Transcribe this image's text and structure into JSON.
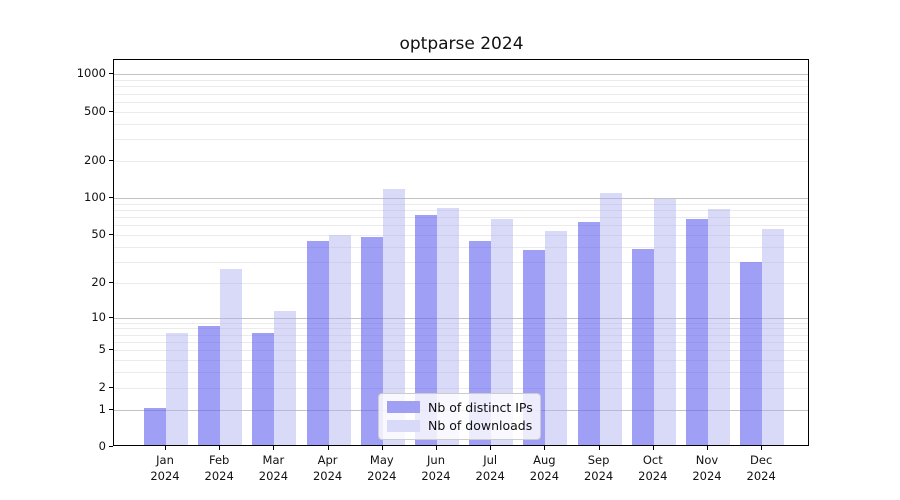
{
  "title": "optparse 2024",
  "chart_data": {
    "type": "bar",
    "title": "optparse 2024",
    "categories": [
      "Jan",
      "Feb",
      "Mar",
      "Apr",
      "May",
      "Jun",
      "Jul",
      "Aug",
      "Sep",
      "Oct",
      "Nov",
      "Dec"
    ],
    "category_sublabel": "2024",
    "series": [
      {
        "name": "Nb of distinct IPs",
        "color": "#9f9ff4",
        "values": [
          1,
          8,
          7,
          43,
          46,
          70,
          43,
          36,
          62,
          37,
          65,
          29
        ]
      },
      {
        "name": "Nb of downloads",
        "color": "#d9d9f8",
        "values": [
          7,
          25,
          11,
          48,
          115,
          80,
          65,
          52,
          105,
          95,
          78,
          54
        ]
      }
    ],
    "yscale": "log1p",
    "yticks": [
      0,
      1,
      2,
      5,
      10,
      20,
      50,
      100,
      200,
      500,
      1000
    ],
    "ytick_major": [
      1,
      10,
      100,
      1000
    ],
    "ylim": [
      0,
      1200
    ],
    "xlabel": "",
    "ylabel": "",
    "grid": true,
    "legend_position": "lower center"
  }
}
